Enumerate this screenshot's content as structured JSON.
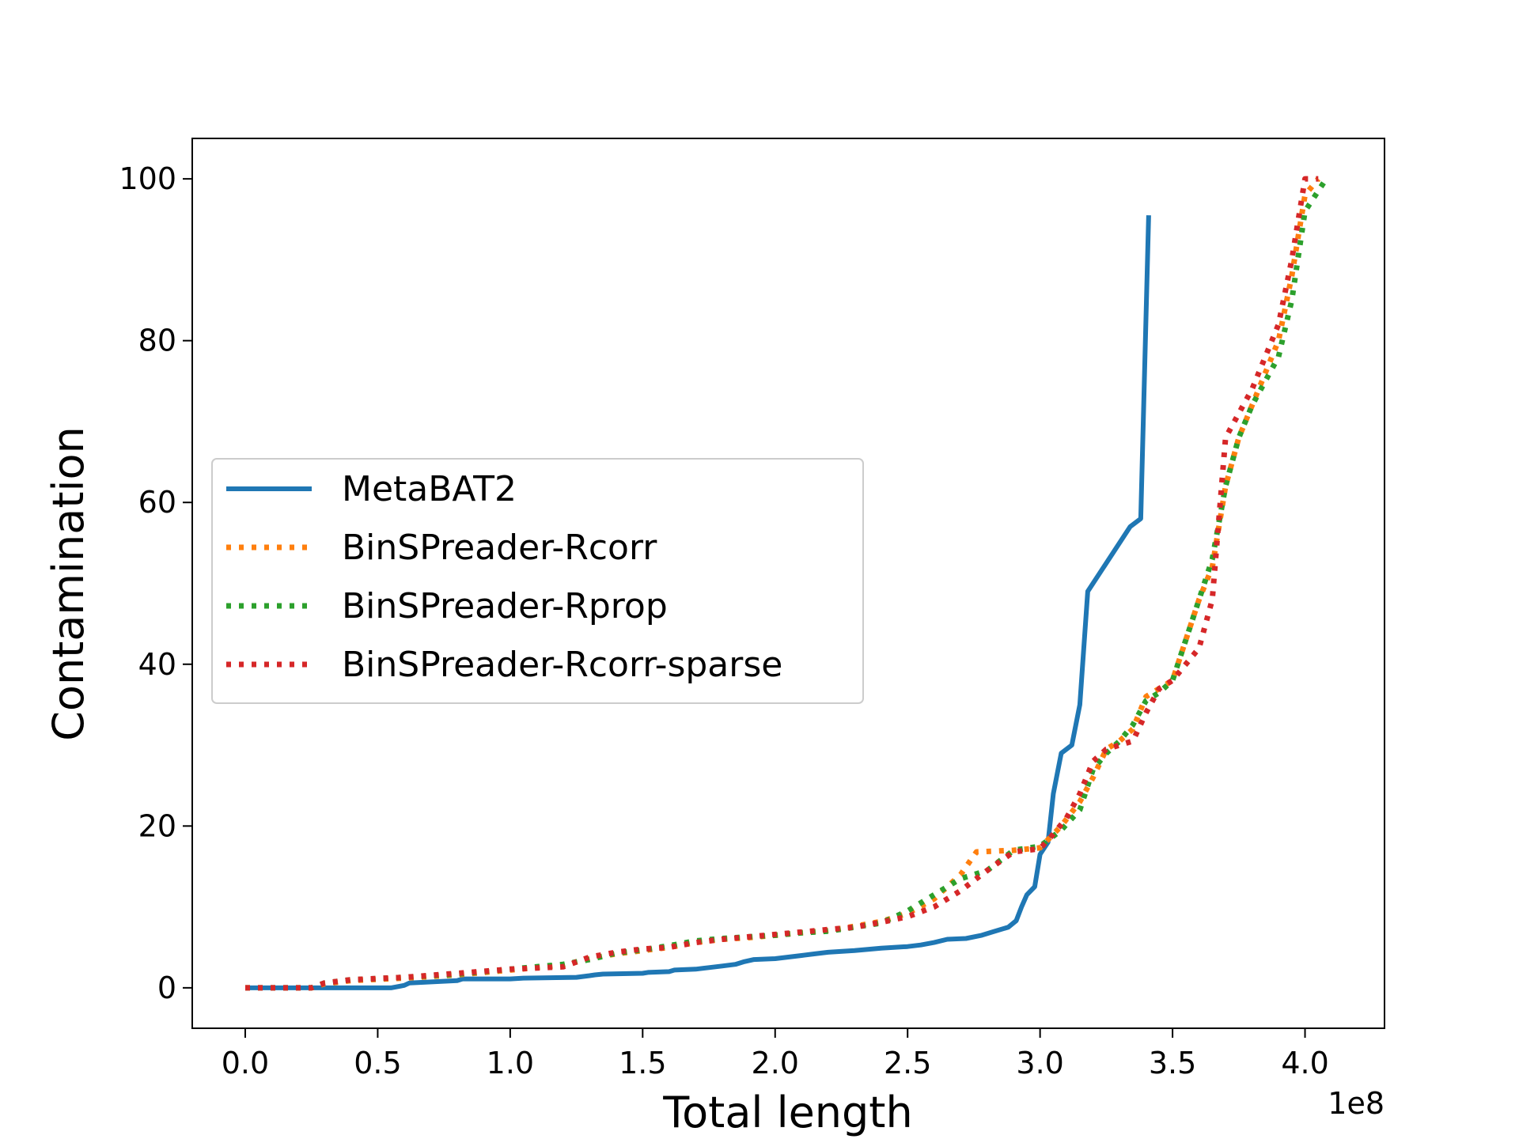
{
  "chart_data": {
    "type": "line",
    "title": "",
    "xlabel": "Total length",
    "ylabel": "Contamination",
    "x_offset_label": "1e8",
    "xlim": [
      -0.2,
      4.3
    ],
    "ylim": [
      -5,
      105
    ],
    "x_ticks": [
      0.0,
      0.5,
      1.0,
      1.5,
      2.0,
      2.5,
      3.0,
      3.5,
      4.0
    ],
    "x_tick_labels": [
      "0.0",
      "0.5",
      "1.0",
      "1.5",
      "2.0",
      "2.5",
      "3.0",
      "3.5",
      "4.0"
    ],
    "y_ticks": [
      0,
      20,
      40,
      60,
      80,
      100
    ],
    "y_tick_labels": [
      "0",
      "20",
      "40",
      "60",
      "80",
      "100"
    ],
    "grid": false,
    "legend_position": "center-left",
    "series": [
      {
        "name": "MetaBAT2",
        "color": "#1f77b4",
        "style": "solid",
        "points": [
          [
            0.0,
            0
          ],
          [
            0.55,
            0
          ],
          [
            0.6,
            0.3
          ],
          [
            0.62,
            0.6
          ],
          [
            0.8,
            0.9
          ],
          [
            0.82,
            1.1
          ],
          [
            1.0,
            1.1
          ],
          [
            1.05,
            1.2
          ],
          [
            1.25,
            1.3
          ],
          [
            1.3,
            1.5
          ],
          [
            1.32,
            1.6
          ],
          [
            1.35,
            1.7
          ],
          [
            1.5,
            1.8
          ],
          [
            1.52,
            1.9
          ],
          [
            1.6,
            2.0
          ],
          [
            1.62,
            2.2
          ],
          [
            1.7,
            2.3
          ],
          [
            1.75,
            2.5
          ],
          [
            1.8,
            2.7
          ],
          [
            1.85,
            2.9
          ],
          [
            1.88,
            3.2
          ],
          [
            1.92,
            3.5
          ],
          [
            2.0,
            3.6
          ],
          [
            2.05,
            3.8
          ],
          [
            2.1,
            4.0
          ],
          [
            2.15,
            4.2
          ],
          [
            2.2,
            4.4
          ],
          [
            2.3,
            4.6
          ],
          [
            2.4,
            4.9
          ],
          [
            2.5,
            5.1
          ],
          [
            2.55,
            5.3
          ],
          [
            2.6,
            5.6
          ],
          [
            2.65,
            6.0
          ],
          [
            2.72,
            6.1
          ],
          [
            2.78,
            6.5
          ],
          [
            2.82,
            6.9
          ],
          [
            2.88,
            7.5
          ],
          [
            2.91,
            8.3
          ],
          [
            2.93,
            10.0
          ],
          [
            2.95,
            11.5
          ],
          [
            2.98,
            12.5
          ],
          [
            3.0,
            16.5
          ],
          [
            3.03,
            18.0
          ],
          [
            3.05,
            24.0
          ],
          [
            3.08,
            29.0
          ],
          [
            3.12,
            30.0
          ],
          [
            3.15,
            35.0
          ],
          [
            3.18,
            49.0
          ],
          [
            3.34,
            57.0
          ],
          [
            3.38,
            58.0
          ],
          [
            3.41,
            95.5
          ]
        ]
      },
      {
        "name": "BinSPreader-Rcorr",
        "color": "#ff7f0e",
        "style": "dotted",
        "points": [
          [
            0.0,
            0
          ],
          [
            0.25,
            0
          ],
          [
            0.3,
            0.5
          ],
          [
            0.4,
            0.9
          ],
          [
            0.6,
            1.2
          ],
          [
            0.8,
            1.6
          ],
          [
            1.0,
            2.2
          ],
          [
            1.2,
            2.8
          ],
          [
            1.3,
            3.6
          ],
          [
            1.4,
            4.2
          ],
          [
            1.5,
            4.6
          ],
          [
            1.6,
            5.0
          ],
          [
            1.7,
            5.6
          ],
          [
            1.8,
            6.0
          ],
          [
            1.9,
            6.2
          ],
          [
            2.0,
            6.5
          ],
          [
            2.1,
            6.8
          ],
          [
            2.2,
            7.1
          ],
          [
            2.3,
            7.6
          ],
          [
            2.4,
            8.2
          ],
          [
            2.5,
            9.2
          ],
          [
            2.6,
            11.0
          ],
          [
            2.7,
            14.0
          ],
          [
            2.76,
            16.8
          ],
          [
            2.9,
            17.0
          ],
          [
            3.0,
            17.3
          ],
          [
            3.08,
            20.0
          ],
          [
            3.15,
            23.0
          ],
          [
            3.2,
            26.0
          ],
          [
            3.25,
            29.5
          ],
          [
            3.3,
            30.5
          ],
          [
            3.35,
            32.0
          ],
          [
            3.4,
            36.0
          ],
          [
            3.45,
            37.0
          ],
          [
            3.5,
            38.0
          ],
          [
            3.6,
            48.0
          ],
          [
            3.65,
            52.0
          ],
          [
            3.7,
            62.0
          ],
          [
            3.75,
            68.0
          ],
          [
            3.8,
            72.0
          ],
          [
            3.9,
            80.0
          ],
          [
            3.95,
            88.0
          ],
          [
            4.0,
            98.0
          ],
          [
            4.05,
            100.0
          ]
        ]
      },
      {
        "name": "BinSPreader-Rprop",
        "color": "#2ca02c",
        "style": "dotted",
        "points": [
          [
            0.0,
            0
          ],
          [
            0.25,
            0
          ],
          [
            0.3,
            0.6
          ],
          [
            0.4,
            1.0
          ],
          [
            0.6,
            1.3
          ],
          [
            0.8,
            1.7
          ],
          [
            1.0,
            2.3
          ],
          [
            1.2,
            2.9
          ],
          [
            1.3,
            3.5
          ],
          [
            1.4,
            4.3
          ],
          [
            1.5,
            4.7
          ],
          [
            1.6,
            5.2
          ],
          [
            1.7,
            5.8
          ],
          [
            1.8,
            6.1
          ],
          [
            1.9,
            6.3
          ],
          [
            2.0,
            6.5
          ],
          [
            2.1,
            6.8
          ],
          [
            2.2,
            7.0
          ],
          [
            2.3,
            7.5
          ],
          [
            2.4,
            8.0
          ],
          [
            2.5,
            9.5
          ],
          [
            2.6,
            11.5
          ],
          [
            2.7,
            13.5
          ],
          [
            2.8,
            14.5
          ],
          [
            2.9,
            17.0
          ],
          [
            3.0,
            17.5
          ],
          [
            3.08,
            19.5
          ],
          [
            3.15,
            22.0
          ],
          [
            3.2,
            27.0
          ],
          [
            3.25,
            29.0
          ],
          [
            3.3,
            30.5
          ],
          [
            3.35,
            32.5
          ],
          [
            3.4,
            35.5
          ],
          [
            3.45,
            36.5
          ],
          [
            3.5,
            38.0
          ],
          [
            3.6,
            48.0
          ],
          [
            3.65,
            53.0
          ],
          [
            3.7,
            62.0
          ],
          [
            3.75,
            68.0
          ],
          [
            3.8,
            72.0
          ],
          [
            3.9,
            78.0
          ],
          [
            3.95,
            85.0
          ],
          [
            4.0,
            96.0
          ],
          [
            4.08,
            100.0
          ]
        ]
      },
      {
        "name": "BinSPreader-Rcorr-sparse",
        "color": "#d62728",
        "style": "dotted",
        "points": [
          [
            0.0,
            0
          ],
          [
            0.25,
            0
          ],
          [
            0.3,
            0.6
          ],
          [
            0.4,
            1.0
          ],
          [
            0.6,
            1.3
          ],
          [
            0.8,
            1.8
          ],
          [
            1.0,
            2.3
          ],
          [
            1.2,
            2.6
          ],
          [
            1.3,
            3.8
          ],
          [
            1.4,
            4.4
          ],
          [
            1.5,
            4.8
          ],
          [
            1.6,
            5.0
          ],
          [
            1.7,
            5.6
          ],
          [
            1.8,
            6.0
          ],
          [
            1.9,
            6.3
          ],
          [
            2.0,
            6.6
          ],
          [
            2.1,
            6.9
          ],
          [
            2.2,
            7.2
          ],
          [
            2.3,
            7.5
          ],
          [
            2.4,
            8.1
          ],
          [
            2.5,
            8.8
          ],
          [
            2.6,
            10.0
          ],
          [
            2.7,
            12.0
          ],
          [
            2.8,
            14.5
          ],
          [
            2.9,
            16.8
          ],
          [
            3.0,
            17.2
          ],
          [
            3.05,
            19.0
          ],
          [
            3.1,
            21.0
          ],
          [
            3.15,
            24.0
          ],
          [
            3.2,
            28.0
          ],
          [
            3.25,
            29.5
          ],
          [
            3.3,
            30.0
          ],
          [
            3.35,
            30.5
          ],
          [
            3.4,
            34.0
          ],
          [
            3.45,
            37.0
          ],
          [
            3.5,
            38.0
          ],
          [
            3.6,
            42.0
          ],
          [
            3.65,
            48.0
          ],
          [
            3.7,
            68.0
          ],
          [
            3.75,
            71.0
          ],
          [
            3.8,
            74.0
          ],
          [
            3.9,
            82.0
          ],
          [
            3.95,
            90.0
          ],
          [
            4.0,
            100.0
          ],
          [
            4.05,
            100.0
          ]
        ]
      }
    ]
  }
}
